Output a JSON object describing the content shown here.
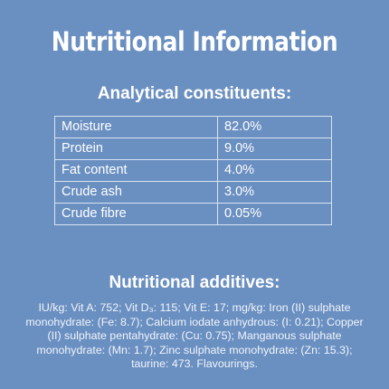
{
  "title": "Nutritional Information",
  "analytical": {
    "heading": "Analytical constituents:",
    "rows": [
      {
        "name": "Moisture",
        "value": "82.0%"
      },
      {
        "name": "Protein",
        "value": "9.0%"
      },
      {
        "name": "Fat content",
        "value": "4.0%"
      },
      {
        "name": "Crude ash",
        "value": "3.0%"
      },
      {
        "name": "Crude fibre",
        "value": "0.05%"
      }
    ]
  },
  "additives": {
    "heading": "Nutritional additives:",
    "text": "IU/kg: Vit A: 752; Vit D₃: 115; Vit E: 17; mg/kg: Iron (II) sulphate monohydrate: (Fe: 8.7); Calcium iodate anhydrous: (I: 0.21); Copper (II) sulphate pentahydrate: (Cu: 0.75); Manganous sulphate monohydrate: (Mn: 1.7); Zinc sulphate monohydrate: (Zn: 15.3); taurine: 473. Flavourings."
  },
  "colors": {
    "background": "#6a8fc1",
    "text": "#ffffff",
    "table_border": "#d9e4f2"
  }
}
